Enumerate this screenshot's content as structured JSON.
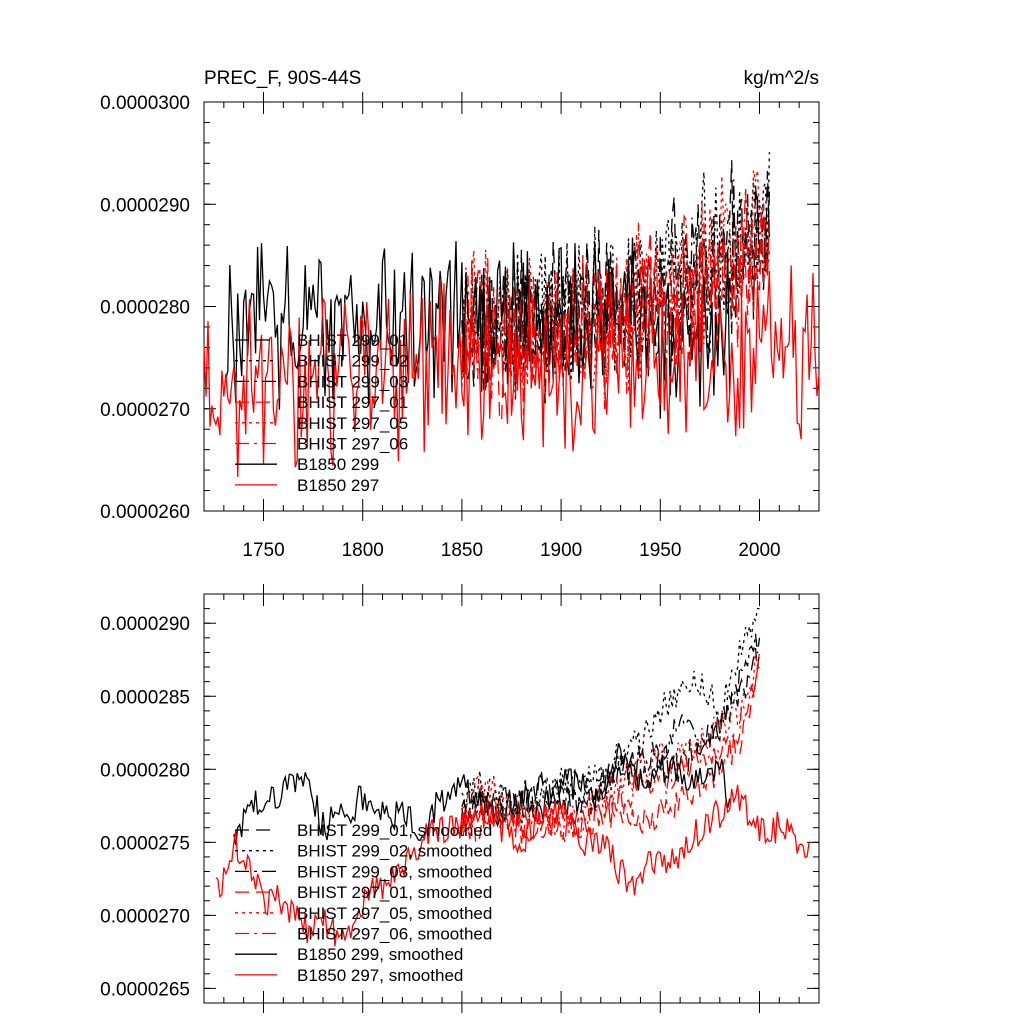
{
  "chart_data": [
    {
      "type": "line",
      "title": "PREC_F, 90S-44S",
      "units": "kg/m^2/s",
      "xlim": [
        1720,
        2030
      ],
      "ylim": [
        2.6e-05,
        3e-05
      ],
      "x_ticks": [
        1750,
        1800,
        1850,
        1900,
        1950,
        2000
      ],
      "x_tick_labels": [
        "1750",
        "1800",
        "1850",
        "1900",
        "1950",
        "2000"
      ],
      "y_ticks": [
        2.6e-05,
        2.7e-05,
        2.8e-05,
        2.9e-05,
        3e-05
      ],
      "y_tick_labels": [
        "0.0000260",
        "0.0000270",
        "0.0000280",
        "0.0000290",
        "0.0000300"
      ],
      "legend_position": "lower-left",
      "series": [
        {
          "name": "BHIST 299_01",
          "color": "#000000",
          "dash": "longdash",
          "x_start": 1850,
          "x_end": 2005,
          "base_start": 2.775e-05,
          "base_end": 2.88e-05,
          "amplitude": 9e-07
        },
        {
          "name": "BHIST 299_02",
          "color": "#000000",
          "dash": "dot",
          "x_start": 1850,
          "x_end": 2005,
          "base_start": 2.78e-05,
          "base_end": 2.89e-05,
          "amplitude": 9e-07
        },
        {
          "name": "BHIST 299_03",
          "color": "#000000",
          "dash": "dashdot",
          "x_start": 1850,
          "x_end": 2005,
          "base_start": 2.77e-05,
          "base_end": 2.87e-05,
          "amplitude": 9e-07
        },
        {
          "name": "BHIST 297_01",
          "color": "#ff0000",
          "dash": "longdash",
          "x_start": 1850,
          "x_end": 2005,
          "base_start": 2.765e-05,
          "base_end": 2.86e-05,
          "amplitude": 9e-07
        },
        {
          "name": "BHIST 297_05",
          "color": "#ff0000",
          "dash": "dot",
          "x_start": 1850,
          "x_end": 2005,
          "base_start": 2.775e-05,
          "base_end": 2.87e-05,
          "amplitude": 9e-07
        },
        {
          "name": "BHIST 297_06",
          "color": "#ff0000",
          "dash": "dashdot",
          "x_start": 1850,
          "x_end": 2005,
          "base_start": 2.765e-05,
          "base_end": 2.86e-05,
          "amplitude": 9e-07
        },
        {
          "name": "B1850 299",
          "color": "#000000",
          "dash": "solid",
          "x_start": 1731,
          "x_end": 1985,
          "base_start": 2.78e-05,
          "base_end": 2.79e-05,
          "amplitude": 1e-06
        },
        {
          "name": "B1850 297",
          "color": "#ff0000",
          "dash": "solid",
          "x_start": 1720,
          "x_end": 2030,
          "base_start": 2.73e-05,
          "base_end": 2.76e-05,
          "amplitude": 1e-06
        }
      ]
    },
    {
      "type": "line",
      "title": "",
      "xlim": [
        1720,
        2030
      ],
      "ylim": [
        2.64e-05,
        2.92e-05
      ],
      "y_ticks": [
        2.65e-05,
        2.7e-05,
        2.75e-05,
        2.8e-05,
        2.85e-05,
        2.9e-05
      ],
      "y_tick_labels": [
        "0.0000265",
        "0.0000270",
        "0.0000275",
        "0.0000280",
        "0.0000285",
        "0.0000290"
      ],
      "legend_position": "lower-left",
      "series": [
        {
          "name": "BHIST 299_01, smoothed",
          "color": "#000000",
          "dash": "longdash",
          "x": [
            1850,
            1860,
            1870,
            1880,
            1890,
            1900,
            1910,
            1920,
            1930,
            1940,
            1950,
            1960,
            1970,
            1980,
            1990,
            2000
          ],
          "y": [
            2.77e-05,
            2.78e-05,
            2.77e-05,
            2.78e-05,
            2.79e-05,
            2.78e-05,
            2.77e-05,
            2.79e-05,
            2.8e-05,
            2.79e-05,
            2.81e-05,
            2.8e-05,
            2.82e-05,
            2.83e-05,
            2.85e-05,
            2.88e-05
          ]
        },
        {
          "name": "BHIST 299_02, smoothed",
          "color": "#000000",
          "dash": "dot",
          "x": [
            1850,
            1860,
            1870,
            1880,
            1890,
            1900,
            1910,
            1920,
            1930,
            1940,
            1950,
            1960,
            1970,
            1980,
            1990,
            2000
          ],
          "y": [
            2.78e-05,
            2.79e-05,
            2.78e-05,
            2.77e-05,
            2.78e-05,
            2.79e-05,
            2.79e-05,
            2.8e-05,
            2.81e-05,
            2.82e-05,
            2.84e-05,
            2.85e-05,
            2.86e-05,
            2.84e-05,
            2.88e-05,
            2.91e-05
          ]
        },
        {
          "name": "BHIST 299_03, smoothed",
          "color": "#000000",
          "dash": "dashdot",
          "x": [
            1850,
            1860,
            1870,
            1880,
            1890,
            1900,
            1910,
            1920,
            1930,
            1940,
            1950,
            1960,
            1970,
            1980,
            1990,
            2000
          ],
          "y": [
            2.77e-05,
            2.78e-05,
            2.78e-05,
            2.77e-05,
            2.79e-05,
            2.78e-05,
            2.78e-05,
            2.79e-05,
            2.8e-05,
            2.81e-05,
            2.81e-05,
            2.83e-05,
            2.82e-05,
            2.83e-05,
            2.86e-05,
            2.89e-05
          ]
        },
        {
          "name": "BHIST 297_01, smoothed",
          "color": "#ff0000",
          "dash": "longdash",
          "x": [
            1850,
            1860,
            1870,
            1880,
            1890,
            1900,
            1910,
            1920,
            1930,
            1940,
            1950,
            1960,
            1970,
            1980,
            1990,
            2000
          ],
          "y": [
            2.76e-05,
            2.76e-05,
            2.77e-05,
            2.76e-05,
            2.77e-05,
            2.76e-05,
            2.76e-05,
            2.77e-05,
            2.77e-05,
            2.76e-05,
            2.77e-05,
            2.78e-05,
            2.79e-05,
            2.8e-05,
            2.82e-05,
            2.87e-05
          ]
        },
        {
          "name": "BHIST 297_05, smoothed",
          "color": "#ff0000",
          "dash": "dot",
          "x": [
            1850,
            1860,
            1870,
            1880,
            1890,
            1900,
            1910,
            1920,
            1930,
            1940,
            1950,
            1960,
            1970,
            1980,
            1990,
            2000
          ],
          "y": [
            2.77e-05,
            2.79e-05,
            2.78e-05,
            2.77e-05,
            2.77e-05,
            2.76e-05,
            2.77e-05,
            2.78e-05,
            2.79e-05,
            2.8e-05,
            2.81e-05,
            2.81e-05,
            2.82e-05,
            2.83e-05,
            2.84e-05,
            2.88e-05
          ]
        },
        {
          "name": "BHIST 297_06, smoothed",
          "color": "#ff0000",
          "dash": "dashdot",
          "x": [
            1850,
            1860,
            1870,
            1880,
            1890,
            1900,
            1910,
            1920,
            1930,
            1940,
            1950,
            1960,
            1970,
            1980,
            1990,
            2000
          ],
          "y": [
            2.76e-05,
            2.77e-05,
            2.77e-05,
            2.76e-05,
            2.76e-05,
            2.77e-05,
            2.76e-05,
            2.77e-05,
            2.78e-05,
            2.79e-05,
            2.79e-05,
            2.8e-05,
            2.81e-05,
            2.81e-05,
            2.83e-05,
            2.87e-05
          ]
        },
        {
          "name": "B1850 299, smoothed",
          "color": "#000000",
          "dash": "solid",
          "x": [
            1735,
            1745,
            1755,
            1765,
            1773,
            1780,
            1790,
            1800,
            1810,
            1820,
            1830,
            1840,
            1850,
            1860,
            1870,
            1880,
            1890,
            1900,
            1910,
            1920,
            1930,
            1940,
            1950,
            1960,
            1970,
            1980,
            1985
          ],
          "y": [
            2.75e-05,
            2.78e-05,
            2.78e-05,
            2.79e-05,
            2.79e-05,
            2.76e-05,
            2.77e-05,
            2.78e-05,
            2.77e-05,
            2.77e-05,
            2.76e-05,
            2.78e-05,
            2.79e-05,
            2.78e-05,
            2.77e-05,
            2.78e-05,
            2.77e-05,
            2.79e-05,
            2.79e-05,
            2.78e-05,
            2.81e-05,
            2.79e-05,
            2.8e-05,
            2.8e-05,
            2.79e-05,
            2.8e-05,
            2.78e-05
          ]
        },
        {
          "name": "B1850 297, smoothed",
          "color": "#ff0000",
          "dash": "solid",
          "x": [
            1726,
            1732,
            1736,
            1742,
            1750,
            1760,
            1770,
            1780,
            1790,
            1800,
            1810,
            1820,
            1830,
            1840,
            1850,
            1860,
            1870,
            1880,
            1890,
            1900,
            1910,
            1920,
            1930,
            1935,
            1940,
            1950,
            1960,
            1970,
            1980,
            1990,
            2000,
            2010,
            2020,
            2025
          ],
          "y": [
            2.72e-05,
            2.73e-05,
            2.75e-05,
            2.73e-05,
            2.71e-05,
            2.71e-05,
            2.69e-05,
            2.7e-05,
            2.68e-05,
            2.71e-05,
            2.72e-05,
            2.73e-05,
            2.75e-05,
            2.76e-05,
            2.76e-05,
            2.77e-05,
            2.76e-05,
            2.75e-05,
            2.77e-05,
            2.77e-05,
            2.75e-05,
            2.75e-05,
            2.73e-05,
            2.72e-05,
            2.73e-05,
            2.74e-05,
            2.74e-05,
            2.76e-05,
            2.77e-05,
            2.78e-05,
            2.76e-05,
            2.76e-05,
            2.75e-05,
            2.75e-05
          ]
        }
      ]
    }
  ]
}
